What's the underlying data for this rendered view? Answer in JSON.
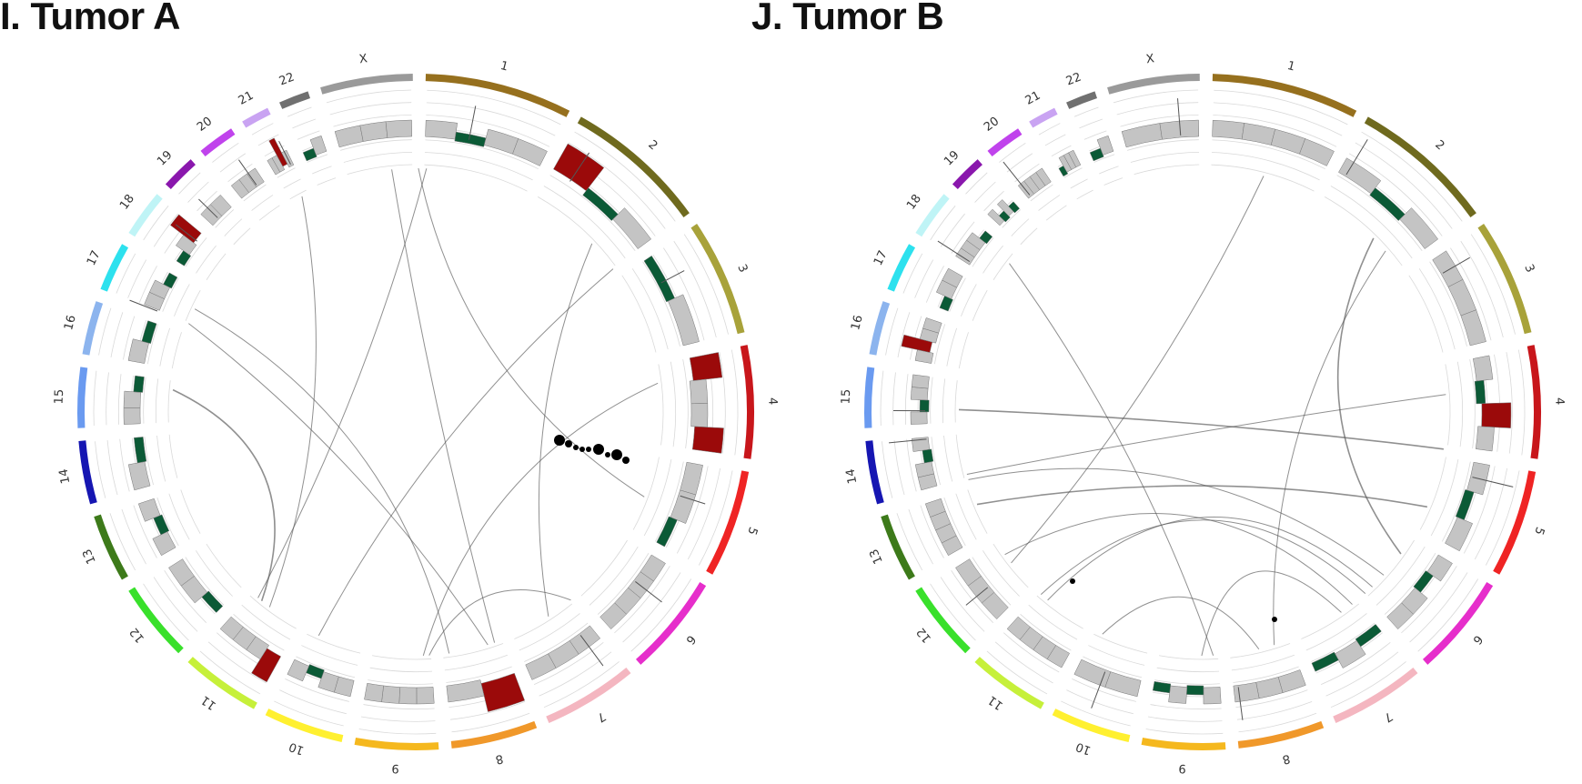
{
  "panels": [
    {
      "title": "I. Tumor A",
      "chromosomes": [
        {
          "label": "1",
          "color": "#96701e"
        },
        {
          "label": "2",
          "color": "#6f6a1e"
        },
        {
          "label": "3",
          "color": "#a8a23a"
        },
        {
          "label": "4",
          "color": "#c8161b"
        },
        {
          "label": "5",
          "color": "#ef2424"
        },
        {
          "label": "6",
          "color": "#e62ecb"
        },
        {
          "label": "7",
          "color": "#f4b6c0"
        },
        {
          "label": "8",
          "color": "#f0982a"
        },
        {
          "label": "9",
          "color": "#f5b81e"
        },
        {
          "label": "10",
          "color": "#fff030"
        },
        {
          "label": "11",
          "color": "#c6f03a"
        },
        {
          "label": "12",
          "color": "#39e02b"
        },
        {
          "label": "13",
          "color": "#3d7a1a"
        },
        {
          "label": "14",
          "color": "#1616b2"
        },
        {
          "label": "15",
          "color": "#6a9af0"
        },
        {
          "label": "16",
          "color": "#8cb4ee"
        },
        {
          "label": "17",
          "color": "#2de1ee"
        },
        {
          "label": "18",
          "color": "#bff4f6"
        },
        {
          "label": "19",
          "color": "#8a17ad"
        },
        {
          "label": "20",
          "color": "#c043ec"
        },
        {
          "label": "21",
          "color": "#c9a3f2"
        },
        {
          "label": "22",
          "color": "#707070"
        },
        {
          "label": "X",
          "color": "#9a9a9a"
        }
      ]
    },
    {
      "title": "J. Tumor B",
      "chromosomes": [
        {
          "label": "1",
          "color": "#96701e"
        },
        {
          "label": "2",
          "color": "#6f6a1e"
        },
        {
          "label": "3",
          "color": "#a8a23a"
        },
        {
          "label": "4",
          "color": "#c8161b"
        },
        {
          "label": "5",
          "color": "#ef2424"
        },
        {
          "label": "6",
          "color": "#e62ecb"
        },
        {
          "label": "7",
          "color": "#f4b6c0"
        },
        {
          "label": "8",
          "color": "#f0982a"
        },
        {
          "label": "9",
          "color": "#f5b81e"
        },
        {
          "label": "10",
          "color": "#fff030"
        },
        {
          "label": "11",
          "color": "#c6f03a"
        },
        {
          "label": "12",
          "color": "#39e02b"
        },
        {
          "label": "13",
          "color": "#3d7a1a"
        },
        {
          "label": "14",
          "color": "#1616b2"
        },
        {
          "label": "15",
          "color": "#6a9af0"
        },
        {
          "label": "16",
          "color": "#8cb4ee"
        },
        {
          "label": "17",
          "color": "#2de1ee"
        },
        {
          "label": "18",
          "color": "#bff4f6"
        },
        {
          "label": "19",
          "color": "#8a17ad"
        },
        {
          "label": "20",
          "color": "#c043ec"
        },
        {
          "label": "21",
          "color": "#c9a3f2"
        },
        {
          "label": "22",
          "color": "#707070"
        },
        {
          "label": "X",
          "color": "#9a9a9a"
        }
      ]
    }
  ],
  "colors": {
    "gain": "#9b0a0a",
    "loss": "#0b5a36",
    "neutral": "#c4c4c4",
    "track_line": "#d9d9d9",
    "link": "#555555"
  }
}
